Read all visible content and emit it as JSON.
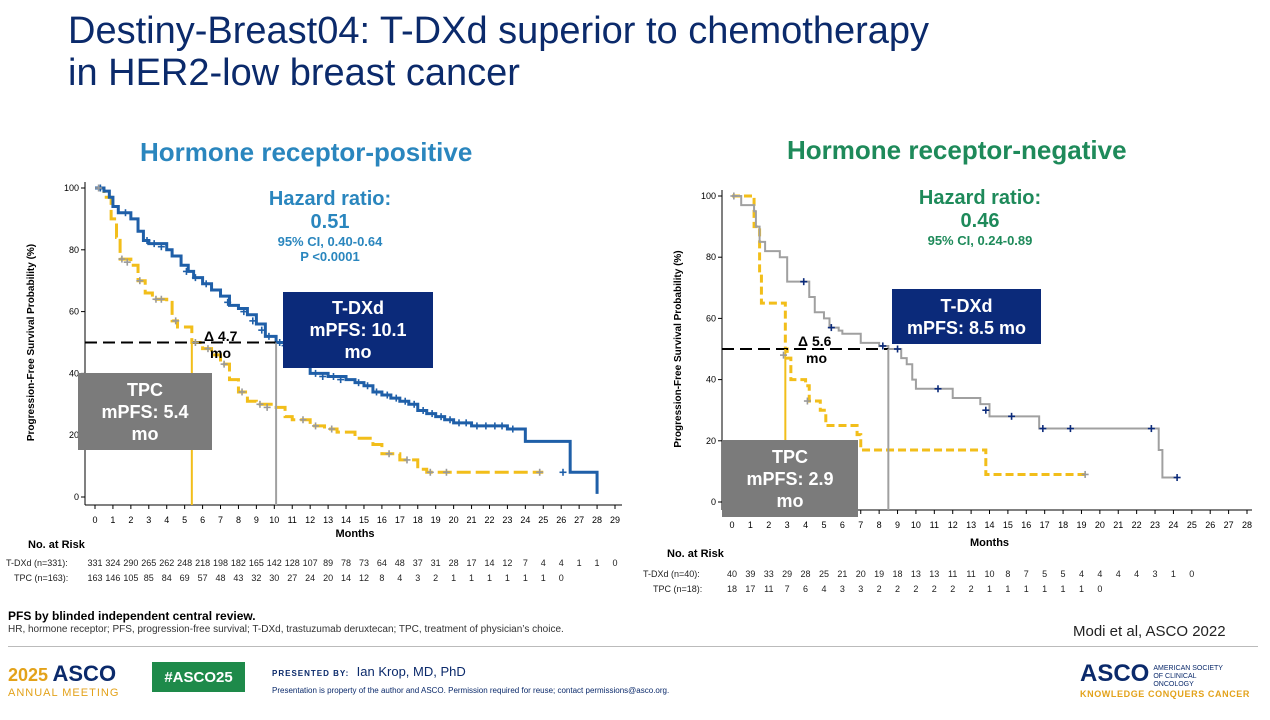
{
  "title_line1": "Destiny-Breast04: T-DXd superior to chemotherapy",
  "title_line2": "in HER2-low breast cancer",
  "colors": {
    "tdxd_pos": "#1f5fa8",
    "tdxd_neg": "#a0a0a0",
    "tpc": "#f2be1a",
    "censor_pos_tdxd": "#1f5fa8",
    "censor_tpc": "#9a9a9a",
    "navy": "#0b2a7a"
  },
  "chart_data": [
    {
      "type": "line",
      "panel_title": "Hormone receptor-positive",
      "xlabel": "Months",
      "ylabel": "Progression-Free Survival Probability (%)",
      "xlim": [
        0,
        29
      ],
      "ylim": [
        0,
        100
      ],
      "x_ticks": [
        "0",
        "1",
        "2",
        "3",
        "4",
        "5",
        "6",
        "7",
        "8",
        "9",
        "10",
        "11",
        "12",
        "13",
        "14",
        "15",
        "16",
        "17",
        "18",
        "19",
        "20",
        "21",
        "22",
        "23",
        "24",
        "25",
        "26",
        "27",
        "28",
        "29"
      ],
      "y_ticks": [
        "0",
        "20",
        "40",
        "60",
        "80",
        "100"
      ],
      "median_line": 50,
      "series": [
        {
          "name": "T-DXd",
          "step": [
            [
              0,
              100
            ],
            [
              0.5,
              99
            ],
            [
              0.8,
              97
            ],
            [
              1,
              94
            ],
            [
              1.3,
              92
            ],
            [
              2,
              90
            ],
            [
              2.4,
              86
            ],
            [
              2.7,
              83
            ],
            [
              3,
              82
            ],
            [
              4,
              80
            ],
            [
              4.3,
              78
            ],
            [
              4.8,
              75
            ],
            [
              5.2,
              73
            ],
            [
              5.5,
              71
            ],
            [
              6,
              69
            ],
            [
              6.5,
              67
            ],
            [
              7,
              65
            ],
            [
              7.5,
              62
            ],
            [
              8,
              61
            ],
            [
              8.5,
              59
            ],
            [
              9,
              56
            ],
            [
              9.5,
              52
            ],
            [
              10.1,
              50
            ],
            [
              10.8,
              48
            ],
            [
              11.2,
              45
            ],
            [
              11.5,
              43
            ],
            [
              12,
              40
            ],
            [
              13,
              39
            ],
            [
              14,
              38
            ],
            [
              14.5,
              37
            ],
            [
              15,
              36
            ],
            [
              15.5,
              34
            ],
            [
              16,
              33
            ],
            [
              16.5,
              32
            ],
            [
              17,
              31
            ],
            [
              17.5,
              30
            ],
            [
              18,
              28
            ],
            [
              18.5,
              27
            ],
            [
              19,
              26
            ],
            [
              19.5,
              25
            ],
            [
              20,
              24
            ],
            [
              21,
              23
            ],
            [
              23,
              22
            ],
            [
              24,
              18
            ],
            [
              26.5,
              8
            ],
            [
              27,
              8
            ],
            [
              28,
              8
            ],
            [
              28,
              1
            ]
          ]
        },
        {
          "name": "TPC",
          "step": [
            [
              0,
              100
            ],
            [
              0.5,
              97
            ],
            [
              0.9,
              90
            ],
            [
              1.2,
              84
            ],
            [
              1.4,
              77
            ],
            [
              2,
              75
            ],
            [
              2.4,
              70
            ],
            [
              2.8,
              66
            ],
            [
              3.2,
              64
            ],
            [
              4,
              63
            ],
            [
              4.3,
              57
            ],
            [
              4.6,
              55
            ],
            [
              5.4,
              50
            ],
            [
              6,
              48
            ],
            [
              6.5,
              46
            ],
            [
              7,
              43
            ],
            [
              7.5,
              38
            ],
            [
              8,
              34
            ],
            [
              8.5,
              31
            ],
            [
              9,
              30
            ],
            [
              10,
              29
            ],
            [
              10.6,
              26
            ],
            [
              11,
              25
            ],
            [
              12,
              23
            ],
            [
              12.8,
              22
            ],
            [
              13.5,
              21
            ],
            [
              14.5,
              19
            ],
            [
              15.5,
              17
            ],
            [
              16,
              14
            ],
            [
              17,
              12
            ],
            [
              18,
              9
            ],
            [
              18.5,
              8
            ],
            [
              20,
              8
            ],
            [
              25,
              8
            ]
          ]
        }
      ],
      "censor_tdxd": [
        [
          0.3,
          100
        ],
        [
          1.7,
          92
        ],
        [
          2.9,
          83
        ],
        [
          3.3,
          82
        ],
        [
          3.7,
          81
        ],
        [
          5.1,
          73
        ],
        [
          5.6,
          71
        ],
        [
          6.2,
          69
        ],
        [
          7.4,
          63
        ],
        [
          8.3,
          60
        ],
        [
          8.8,
          57
        ],
        [
          9.3,
          54
        ],
        [
          9.7,
          52
        ],
        [
          10.3,
          50
        ],
        [
          10.6,
          49
        ],
        [
          11.1,
          47
        ],
        [
          11.6,
          43
        ],
        [
          12.3,
          40
        ],
        [
          12.7,
          39
        ],
        [
          13.3,
          39
        ],
        [
          13.7,
          38
        ],
        [
          14.7,
          37
        ],
        [
          15.2,
          36
        ],
        [
          15.7,
          34
        ],
        [
          16.3,
          33
        ],
        [
          16.8,
          32
        ],
        [
          17.3,
          31
        ],
        [
          17.8,
          30
        ],
        [
          18.3,
          28
        ],
        [
          18.8,
          27
        ],
        [
          19.3,
          26
        ],
        [
          19.8,
          25
        ],
        [
          20.3,
          24
        ],
        [
          20.7,
          24
        ],
        [
          21.3,
          23
        ],
        [
          21.8,
          23
        ],
        [
          22.3,
          23
        ],
        [
          22.7,
          23
        ],
        [
          23.3,
          22
        ],
        [
          26.1,
          8
        ]
      ],
      "censor_tpc": [
        [
          0.2,
          100
        ],
        [
          1.5,
          77
        ],
        [
          1.8,
          76
        ],
        [
          2.5,
          70
        ],
        [
          3.4,
          64
        ],
        [
          3.7,
          64
        ],
        [
          4.5,
          57
        ],
        [
          5.6,
          50
        ],
        [
          6.3,
          48
        ],
        [
          7.2,
          43
        ],
        [
          8.2,
          34
        ],
        [
          9.2,
          30
        ],
        [
          9.6,
          29
        ],
        [
          11.6,
          25
        ],
        [
          12.3,
          23
        ],
        [
          13.2,
          22
        ],
        [
          16.4,
          14
        ],
        [
          17.4,
          12
        ],
        [
          18.7,
          8
        ],
        [
          19.6,
          8
        ],
        [
          24.8,
          8
        ]
      ],
      "median_tdxd": 10.1,
      "median_tpc": 5.4
    },
    {
      "type": "line",
      "panel_title": "Hormone receptor-negative",
      "xlabel": "Months",
      "ylabel": "Progression-Free Survival Probability (%)",
      "xlim": [
        0,
        28
      ],
      "ylim": [
        0,
        100
      ],
      "x_ticks": [
        "0",
        "1",
        "2",
        "3",
        "4",
        "5",
        "6",
        "7",
        "8",
        "9",
        "10",
        "11",
        "12",
        "13",
        "14",
        "15",
        "16",
        "17",
        "18",
        "19",
        "20",
        "21",
        "22",
        "23",
        "24",
        "25",
        "26",
        "27",
        "28"
      ],
      "y_ticks": [
        "0",
        "20",
        "40",
        "60",
        "80",
        "100"
      ],
      "median_line": 50,
      "series": [
        {
          "name": "T-DXd",
          "step": [
            [
              0,
              100
            ],
            [
              0.5,
              97
            ],
            [
              1.2,
              95
            ],
            [
              1.3,
              90
            ],
            [
              1.5,
              85
            ],
            [
              1.8,
              82
            ],
            [
              2.6,
              80
            ],
            [
              3,
              72
            ],
            [
              4,
              72
            ],
            [
              4.2,
              67
            ],
            [
              4.5,
              62
            ],
            [
              5,
              60
            ],
            [
              5.3,
              57
            ],
            [
              5.8,
              56
            ],
            [
              6,
              55
            ],
            [
              7,
              52
            ],
            [
              8,
              51
            ],
            [
              8.5,
              50
            ],
            [
              9.2,
              47
            ],
            [
              9.5,
              45
            ],
            [
              9.8,
              40
            ],
            [
              10,
              37
            ],
            [
              11.5,
              37
            ],
            [
              12,
              34
            ],
            [
              13.5,
              32
            ],
            [
              14,
              28
            ],
            [
              15,
              28
            ],
            [
              16.5,
              28
            ],
            [
              16.7,
              24
            ],
            [
              17,
              24
            ],
            [
              23,
              24
            ],
            [
              23.2,
              17
            ],
            [
              23.4,
              8
            ],
            [
              24.2,
              8
            ]
          ]
        },
        {
          "name": "TPC",
          "step": [
            [
              0,
              100
            ],
            [
              1,
              100
            ],
            [
              1.2,
              90
            ],
            [
              1.5,
              75
            ],
            [
              1.6,
              65
            ],
            [
              2.5,
              65
            ],
            [
              2.9,
              50
            ],
            [
              3,
              47
            ],
            [
              3.2,
              40
            ],
            [
              4,
              38
            ],
            [
              4.2,
              33
            ],
            [
              4.8,
              30
            ],
            [
              5.1,
              25
            ],
            [
              6,
              25
            ],
            [
              6.8,
              22
            ],
            [
              7,
              17
            ],
            [
              13.5,
              17
            ],
            [
              13.8,
              9
            ],
            [
              19.2,
              9
            ]
          ]
        }
      ],
      "censor_tdxd": [
        [
          3.9,
          72
        ],
        [
          5.4,
          57
        ],
        [
          8.2,
          51
        ],
        [
          9,
          50
        ],
        [
          11.2,
          37
        ],
        [
          13.8,
          30
        ],
        [
          15.2,
          28
        ],
        [
          16.9,
          24
        ],
        [
          18.4,
          24
        ],
        [
          22.8,
          24
        ],
        [
          24.2,
          8
        ]
      ],
      "censor_tpc": [
        [
          0.1,
          100
        ],
        [
          2.8,
          48
        ],
        [
          4.1,
          33
        ],
        [
          19.2,
          9
        ]
      ],
      "median_tdxd": 8.5,
      "median_tpc": 2.9
    }
  ],
  "pos": {
    "panel_title": "Hormone receptor-positive",
    "hazard_label": "Hazard ratio:",
    "hazard_value": "0.51",
    "ci": "95% CI, 0.40-0.64",
    "p_value": "P <0.0001",
    "tdxd_box_line1": "T-DXd",
    "tdxd_box_line2": "mPFS: 10.1",
    "tdxd_box_line3": "mo",
    "tpc_box_line1": "TPC",
    "tpc_box_line2": "mPFS: 5.4",
    "tpc_box_line3": "mo",
    "delta_line1": "Δ 4.7",
    "delta_line2": "mo",
    "risk_title": "No. at Risk",
    "risk_tdxd_label": "T-DXd (n=331):",
    "risk_tpc_label": "TPC (n=163):",
    "risk_tdxd": [
      "331",
      "324",
      "290",
      "265",
      "262",
      "248",
      "218",
      "198",
      "182",
      "165",
      "142",
      "128",
      "107",
      "89",
      "78",
      "73",
      "64",
      "48",
      "37",
      "31",
      "28",
      "17",
      "14",
      "12",
      "7",
      "4",
      "4",
      "1",
      "1",
      "0"
    ],
    "risk_tpc": [
      "163",
      "146",
      "105",
      "85",
      "84",
      "69",
      "57",
      "48",
      "43",
      "32",
      "30",
      "27",
      "24",
      "20",
      "14",
      "12",
      "8",
      "4",
      "3",
      "2",
      "1",
      "1",
      "1",
      "1",
      "1",
      "1",
      "0"
    ]
  },
  "neg": {
    "panel_title": "Hormone receptor-negative",
    "hazard_label": "Hazard ratio:",
    "hazard_value": "0.46",
    "ci": "95% CI, 0.24-0.89",
    "tdxd_box_line1": "T-DXd",
    "tdxd_box_line2": "mPFS: 8.5 mo",
    "tpc_box_line1": "TPC",
    "tpc_box_line2": "mPFS: 2.9",
    "tpc_box_line3": "mo",
    "delta_line1": "Δ 5.6",
    "delta_line2": "mo",
    "risk_title": "No. at Risk",
    "risk_tdxd_label": "T-DXd (n=40):",
    "risk_tpc_label": "TPC (n=18):",
    "risk_tdxd": [
      "40",
      "39",
      "33",
      "29",
      "28",
      "25",
      "21",
      "20",
      "19",
      "18",
      "13",
      "13",
      "11",
      "11",
      "10",
      "8",
      "7",
      "5",
      "5",
      "4",
      "4",
      "4",
      "4",
      "3",
      "1",
      "0"
    ],
    "risk_tpc": [
      "18",
      "17",
      "11",
      "7",
      "6",
      "4",
      "3",
      "3",
      "2",
      "2",
      "2",
      "2",
      "2",
      "2",
      "1",
      "1",
      "1",
      "1",
      "1",
      "1",
      "0"
    ]
  },
  "footer": {
    "note_bold": "PFS by blinded independent central review.",
    "note": "HR, hormone receptor; PFS, progression-free survival; T-DXd, trastuzumab deruxtecan; TPC, treatment of physician’s choice.",
    "citation": "Modi et al, ASCO 2022",
    "meeting_year": "2025",
    "meeting_asco": "ASCO",
    "meeting_sub": "ANNUAL MEETING",
    "hashtag": "#ASCO25",
    "presented_by": "PRESENTED BY:",
    "presenter": "Ian Krop, MD, PhD",
    "property": "Presentation is property of the author and ASCO. Permission required for reuse; contact permissions@asco.org.",
    "logo_asco": "ASCO",
    "logo_society": "AMERICAN SOCIETY OF CLINICAL ONCOLOGY",
    "logo_tagline": "KNOWLEDGE CONQUERS CANCER"
  }
}
